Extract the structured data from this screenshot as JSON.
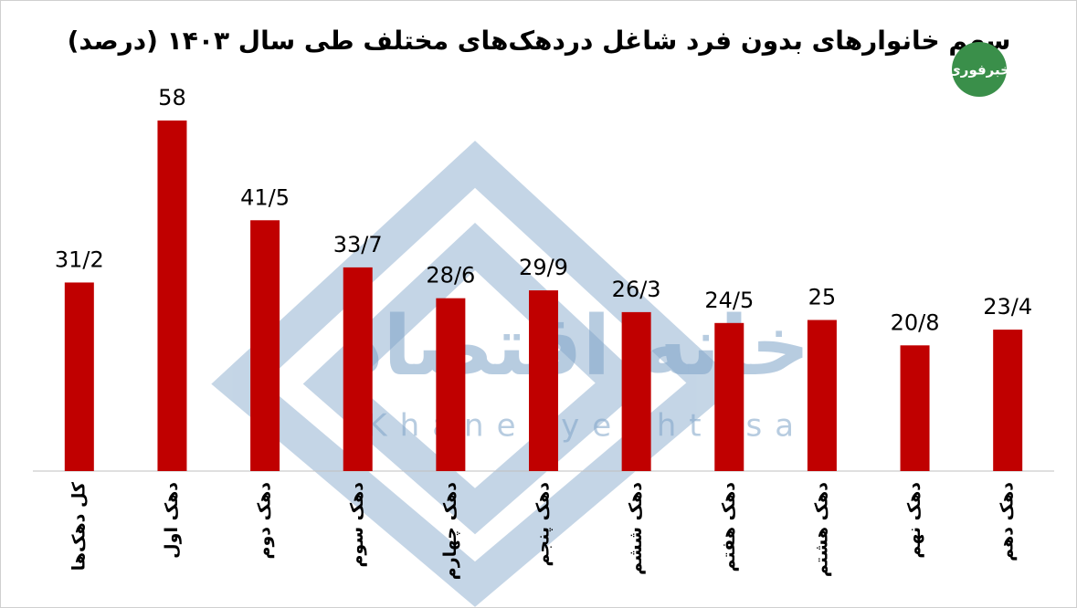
{
  "chart_data": {
    "type": "bar",
    "title": "سهم خانوارهای بدون فرد شاغل دردهک‌های مختلف طی سال ۱۴۰۳ (درصد)",
    "categories": [
      "کل دهک‌ها",
      "دهک اول",
      "دهک دوم",
      "دهک سوم",
      "دهک چهارم",
      "دهک پنجم",
      "دهک ششم",
      "دهک هفتم",
      "دهک هشتم",
      "دهک نهم",
      "دهک دهم"
    ],
    "values": [
      31.2,
      58,
      41.5,
      33.7,
      28.6,
      29.9,
      26.3,
      24.5,
      25,
      20.8,
      23.4
    ],
    "value_labels": [
      "31/2",
      "58",
      "41/5",
      "33/7",
      "28/6",
      "29/9",
      "26/3",
      "24/5",
      "25",
      "20/8",
      "23/4"
    ],
    "color": "#c00000",
    "ylim": [
      0,
      70
    ],
    "grid": false
  },
  "watermark": [
    "خانه اقتصاد",
    "Khanehyeghtesad"
  ],
  "logo": "خبرفوری"
}
